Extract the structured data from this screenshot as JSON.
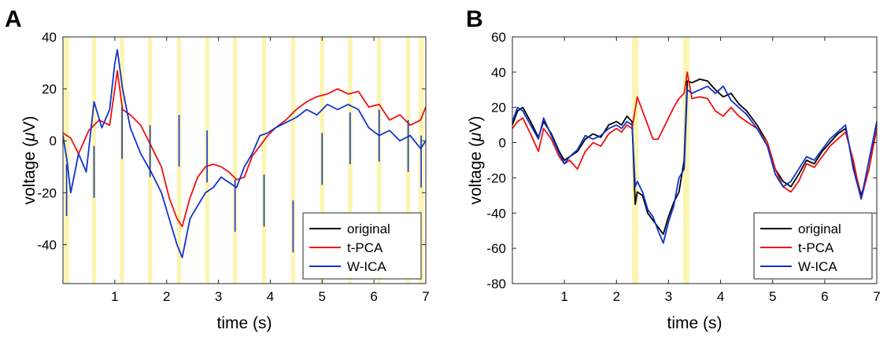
{
  "chart_data": [
    {
      "type": "line",
      "panel": "A",
      "xlabel": "time (s)",
      "ylabel": "voltage (μV)",
      "ylabel_parts": [
        "voltage (",
        "μ",
        "V)"
      ],
      "xlim": [
        0,
        7
      ],
      "ylim": [
        -55,
        40
      ],
      "xticks": [
        1,
        2,
        3,
        4,
        5,
        6,
        7
      ],
      "yticks": [
        -40,
        -20,
        0,
        20,
        40
      ],
      "grid": false,
      "legend_position": "bottom-right",
      "highlight_color": "#fbf5b0",
      "highlights": [
        [
          0.02,
          0.12
        ],
        [
          0.56,
          0.64
        ],
        [
          1.1,
          1.18
        ],
        [
          1.64,
          1.72
        ],
        [
          2.2,
          2.28
        ],
        [
          2.74,
          2.82
        ],
        [
          3.28,
          3.36
        ],
        [
          3.84,
          3.92
        ],
        [
          4.4,
          4.48
        ],
        [
          4.96,
          5.04
        ],
        [
          5.5,
          5.58
        ],
        [
          6.06,
          6.14
        ],
        [
          6.62,
          6.7
        ],
        [
          6.86,
          6.96
        ]
      ],
      "series": [
        {
          "name": "original",
          "color": "#000000",
          "x": [],
          "y": []
        },
        {
          "name": "t-PCA",
          "color": "#ee1111",
          "x": [
            0,
            0.15,
            0.3,
            0.5,
            0.7,
            0.9,
            1.0,
            1.05,
            1.15,
            1.3,
            1.5,
            1.7,
            1.9,
            2.05,
            2.2,
            2.3,
            2.45,
            2.6,
            2.75,
            2.9,
            3.05,
            3.2,
            3.35,
            3.5,
            3.65,
            3.8,
            3.95,
            4.1,
            4.3,
            4.5,
            4.7,
            4.9,
            5.1,
            5.3,
            5.5,
            5.7,
            5.9,
            6.1,
            6.3,
            6.5,
            6.7,
            6.9,
            7.0
          ],
          "y": [
            3,
            1,
            -5,
            4,
            8,
            6,
            20,
            27,
            12,
            10,
            6,
            -2,
            -10,
            -22,
            -30,
            -33,
            -22,
            -14,
            -10,
            -9,
            -10,
            -12,
            -15,
            -14,
            -6,
            -2,
            2,
            5,
            8,
            12,
            15,
            17,
            18,
            20,
            18,
            19,
            13,
            14,
            8,
            10,
            6,
            8,
            13
          ]
        },
        {
          "name": "W-ICA",
          "color": "#1133cc",
          "x": [
            0,
            0.08,
            0.15,
            0.3,
            0.45,
            0.6,
            0.75,
            0.9,
            1.0,
            1.05,
            1.15,
            1.3,
            1.5,
            1.7,
            1.9,
            2.05,
            2.2,
            2.3,
            2.45,
            2.6,
            2.75,
            2.9,
            3.05,
            3.2,
            3.35,
            3.5,
            3.65,
            3.8,
            3.95,
            4.1,
            4.3,
            4.5,
            4.7,
            4.9,
            5.1,
            5.3,
            5.5,
            5.7,
            5.9,
            6.1,
            6.3,
            6.5,
            6.7,
            6.9,
            7.0
          ],
          "y": [
            2,
            -8,
            -20,
            -5,
            -12,
            15,
            5,
            12,
            30,
            35,
            20,
            5,
            -5,
            -12,
            -20,
            -30,
            -40,
            -45,
            -30,
            -25,
            -20,
            -18,
            -14,
            -16,
            -18,
            -10,
            -5,
            2,
            3,
            5,
            7,
            9,
            12,
            10,
            14,
            12,
            14,
            12,
            5,
            2,
            4,
            0,
            2,
            -3,
            0
          ]
        }
      ],
      "spikes": {
        "color": "#1133cc",
        "y": [
          -29,
          -22,
          -7,
          -14,
          -10,
          -16,
          -35,
          -33,
          -43,
          -17,
          -9,
          -8,
          -12,
          -18
        ]
      }
    },
    {
      "type": "line",
      "panel": "B",
      "xlabel": "time (s)",
      "ylabel": "voltage (μV)",
      "ylabel_parts": [
        "voltage (",
        "μ",
        "V)"
      ],
      "xlim": [
        0,
        7
      ],
      "ylim": [
        -80,
        60
      ],
      "xticks": [
        1,
        2,
        3,
        4,
        5,
        6,
        7
      ],
      "yticks": [
        -80,
        -60,
        -40,
        -20,
        0,
        20,
        40,
        60
      ],
      "grid": false,
      "legend_position": "bottom-right",
      "highlight_color": "#fbf5b0",
      "highlights": [
        [
          2.3,
          2.42
        ],
        [
          3.28,
          3.4
        ]
      ],
      "series": [
        {
          "name": "original",
          "color": "#000000",
          "x": [
            0,
            0.1,
            0.2,
            0.35,
            0.5,
            0.6,
            0.75,
            0.9,
            1.0,
            1.1,
            1.25,
            1.4,
            1.55,
            1.7,
            1.85,
            2.0,
            2.1,
            2.2,
            2.3,
            2.36,
            2.4,
            2.5,
            2.6,
            2.7,
            2.8,
            2.9,
            3.0,
            3.1,
            3.2,
            3.3,
            3.36,
            3.45,
            3.6,
            3.75,
            3.9,
            4.05,
            4.2,
            4.35,
            4.5,
            4.7,
            4.9,
            5.05,
            5.2,
            5.35,
            5.5,
            5.65,
            5.8,
            5.95,
            6.1,
            6.25,
            6.4,
            6.55,
            6.7,
            6.85,
            7.0
          ],
          "y": [
            10,
            18,
            20,
            12,
            3,
            12,
            5,
            -5,
            -10,
            -8,
            -5,
            2,
            5,
            3,
            10,
            12,
            10,
            15,
            12,
            -35,
            -28,
            -30,
            -40,
            -44,
            -48,
            -52,
            -42,
            -34,
            -28,
            -10,
            35,
            34,
            36,
            35,
            30,
            26,
            28,
            22,
            18,
            10,
            0,
            -15,
            -22,
            -25,
            -18,
            -10,
            -12,
            -5,
            0,
            5,
            8,
            -12,
            -30,
            -15,
            10
          ]
        },
        {
          "name": "t-PCA",
          "color": "#ee1111",
          "x": [
            0,
            0.1,
            0.2,
            0.35,
            0.5,
            0.6,
            0.75,
            0.9,
            1.0,
            1.1,
            1.25,
            1.4,
            1.55,
            1.7,
            1.85,
            2.0,
            2.1,
            2.2,
            2.3,
            2.4,
            2.5,
            2.6,
            2.7,
            2.8,
            2.9,
            3.0,
            3.1,
            3.2,
            3.3,
            3.36,
            3.45,
            3.6,
            3.75,
            3.9,
            4.05,
            4.2,
            4.35,
            4.5,
            4.7,
            4.9,
            5.05,
            5.2,
            5.35,
            5.5,
            5.65,
            5.8,
            5.95,
            6.1,
            6.25,
            6.4,
            6.55,
            6.7,
            6.85,
            7.0
          ],
          "y": [
            8,
            12,
            14,
            5,
            -5,
            8,
            2,
            -8,
            -12,
            -10,
            -15,
            -5,
            0,
            -2,
            5,
            8,
            6,
            10,
            8,
            26,
            18,
            10,
            2,
            2,
            8,
            14,
            20,
            25,
            28,
            40,
            25,
            26,
            25,
            18,
            15,
            20,
            15,
            12,
            8,
            0,
            -15,
            -25,
            -28,
            -22,
            -12,
            -14,
            -8,
            -2,
            2,
            6,
            -10,
            -32,
            -15,
            8
          ]
        },
        {
          "name": "W-ICA",
          "color": "#1133cc",
          "x": [
            0,
            0.1,
            0.2,
            0.35,
            0.5,
            0.6,
            0.75,
            0.9,
            1.0,
            1.1,
            1.25,
            1.4,
            1.55,
            1.7,
            1.85,
            2.0,
            2.1,
            2.2,
            2.3,
            2.36,
            2.4,
            2.5,
            2.6,
            2.7,
            2.8,
            2.9,
            3.0,
            3.1,
            3.2,
            3.3,
            3.36,
            3.45,
            3.6,
            3.75,
            3.9,
            4.05,
            4.2,
            4.35,
            4.5,
            4.7,
            4.9,
            5.05,
            5.2,
            5.35,
            5.5,
            5.65,
            5.8,
            5.95,
            6.1,
            6.25,
            6.4,
            6.55,
            6.7,
            6.85,
            7.0
          ],
          "y": [
            12,
            20,
            18,
            10,
            2,
            14,
            4,
            -6,
            -12,
            -8,
            -4,
            4,
            2,
            4,
            8,
            10,
            8,
            12,
            10,
            -25,
            -22,
            -28,
            -38,
            -42,
            -50,
            -57,
            -45,
            -36,
            -20,
            -15,
            30,
            28,
            30,
            32,
            28,
            32,
            24,
            20,
            16,
            8,
            -2,
            -18,
            -25,
            -22,
            -15,
            -8,
            -10,
            -4,
            2,
            6,
            10,
            -15,
            -32,
            -10,
            12
          ]
        }
      ]
    }
  ]
}
